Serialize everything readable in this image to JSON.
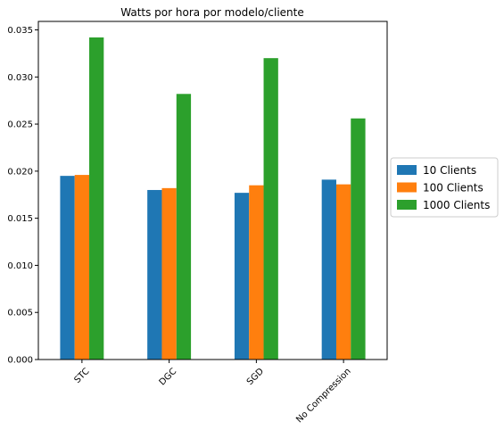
{
  "chart_data": {
    "type": "bar",
    "title": "Watts por hora por modelo/cliente",
    "xlabel": "",
    "ylabel": "",
    "categories": [
      "STC",
      "DGC",
      "SGD",
      "No Compression"
    ],
    "series": [
      {
        "name": "10 Clients",
        "color": "#1f77b4",
        "values": [
          0.0195,
          0.018,
          0.0177,
          0.0191
        ]
      },
      {
        "name": "100 Clients",
        "color": "#ff7f0e",
        "values": [
          0.0196,
          0.0182,
          0.0185,
          0.0186
        ]
      },
      {
        "name": "1000 Clients",
        "color": "#2ca02c",
        "values": [
          0.0342,
          0.0282,
          0.032,
          0.0256
        ]
      }
    ],
    "ylim": [
      0,
      0.0359
    ],
    "yticks": [
      "0.000",
      "0.005",
      "0.010",
      "0.015",
      "0.020",
      "0.025",
      "0.030",
      "0.035"
    ],
    "grid": false,
    "legend_position": "right-outside"
  }
}
